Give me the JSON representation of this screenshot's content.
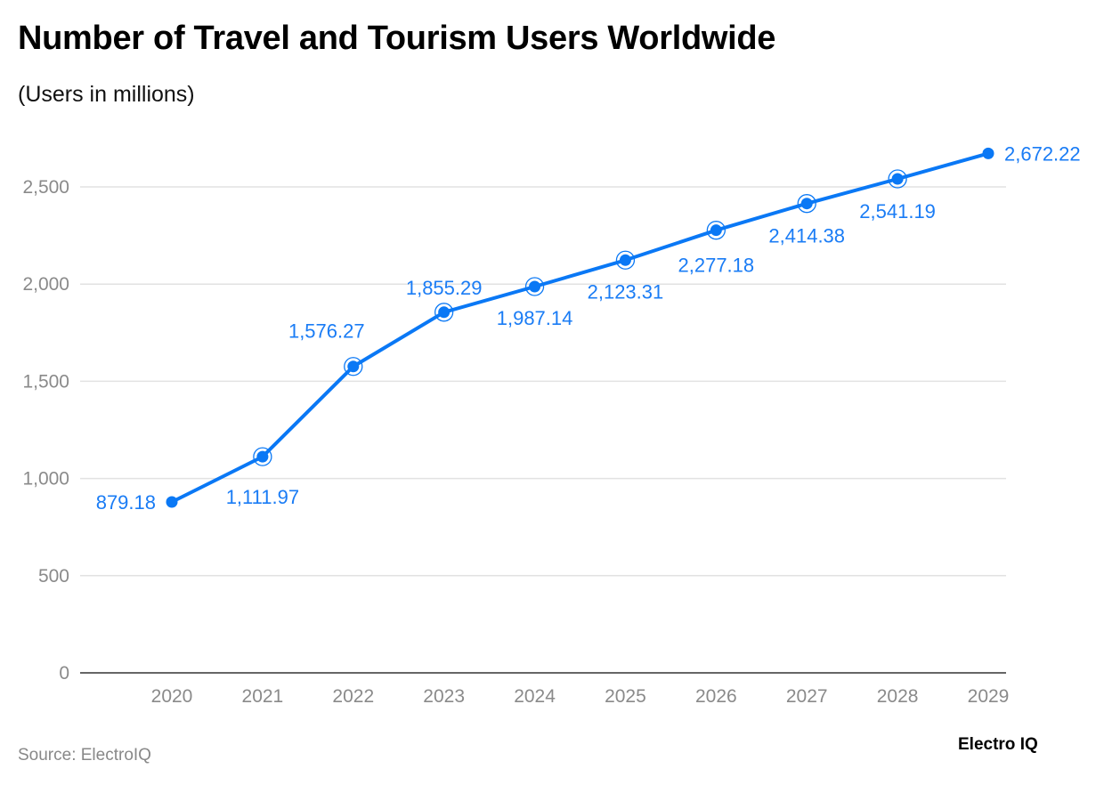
{
  "chart_data": {
    "type": "line",
    "title": "Number of Travel and Tourism Users Worldwide",
    "subtitle": "(Users in millions)",
    "categories": [
      "2020",
      "2021",
      "2022",
      "2023",
      "2024",
      "2025",
      "2026",
      "2027",
      "2028",
      "2029"
    ],
    "values": [
      879.18,
      1111.97,
      1576.27,
      1855.29,
      1987.14,
      2123.31,
      2277.18,
      2414.38,
      2541.19,
      2672.22
    ],
    "data_labels": [
      "879.18",
      "1,111.97",
      "1,576.27",
      "1,855.29",
      "1,987.14",
      "2,123.31",
      "2,277.18",
      "2,414.38",
      "2,541.19",
      "2,672.22"
    ],
    "yticks": [
      0,
      500,
      1000,
      1500,
      2000,
      2500
    ],
    "ytick_labels": [
      "0",
      "500",
      "1,000",
      "1,500",
      "2,000",
      "2,500"
    ],
    "ylim": [
      0,
      2700
    ],
    "grid": true,
    "legend": "none",
    "color": "#0a78f5"
  },
  "footer": {
    "source": "Source: ElectroIQ",
    "logo": "Electro IQ"
  }
}
